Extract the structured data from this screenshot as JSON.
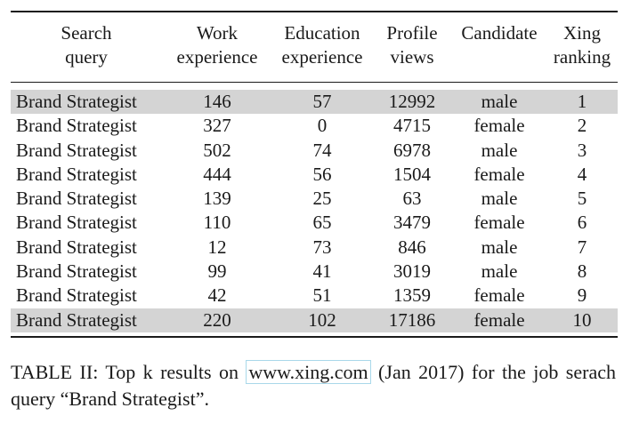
{
  "table": {
    "headers": [
      [
        "Search",
        "query"
      ],
      [
        "Work",
        "experience"
      ],
      [
        "Education",
        "experience"
      ],
      [
        "Profile",
        "views"
      ],
      [
        "Candidate",
        ""
      ],
      [
        "Xing",
        "ranking"
      ]
    ],
    "rows": [
      [
        "Brand Strategist",
        "146",
        "57",
        "12992",
        "male",
        "1"
      ],
      [
        "Brand Strategist",
        "327",
        "0",
        "4715",
        "female",
        "2"
      ],
      [
        "Brand Strategist",
        "502",
        "74",
        "6978",
        "male",
        "3"
      ],
      [
        "Brand Strategist",
        "444",
        "56",
        "1504",
        "female",
        "4"
      ],
      [
        "Brand Strategist",
        "139",
        "25",
        "63",
        "male",
        "5"
      ],
      [
        "Brand Strategist",
        "110",
        "65",
        "3479",
        "female",
        "6"
      ],
      [
        "Brand Strategist",
        "12",
        "73",
        "846",
        "male",
        "7"
      ],
      [
        "Brand Strategist",
        "99",
        "41",
        "3019",
        "male",
        "8"
      ],
      [
        "Brand Strategist",
        "42",
        "51",
        "1359",
        "female",
        "9"
      ],
      [
        "Brand Strategist",
        "220",
        "102",
        "17186",
        "female",
        "10"
      ]
    ],
    "highlighted_rows": [
      1,
      10
    ]
  },
  "caption": {
    "before_link": "TABLE II: Top k results on ",
    "link": "www.xing.com",
    "after_link": " (Jan 2017) for the job serach query “Brand Strategist”."
  }
}
